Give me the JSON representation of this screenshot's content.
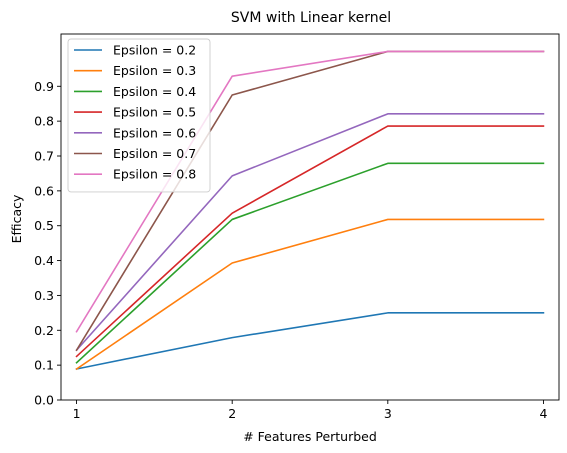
{
  "chart_data": {
    "type": "line",
    "title": "SVM with Linear kernel",
    "xlabel": "# Features Perturbed",
    "ylabel": "Efficacy",
    "x": [
      1,
      2,
      3,
      4
    ],
    "xlim": [
      0.9,
      4.1
    ],
    "ylim": [
      0.0,
      1.05
    ],
    "xticks": [
      "1",
      "2",
      "3",
      "4"
    ],
    "yticks": [
      "0.0",
      "0.1",
      "0.2",
      "0.3",
      "0.4",
      "0.5",
      "0.6",
      "0.7",
      "0.8",
      "0.9"
    ],
    "grid": false,
    "legend_position": "top-left",
    "series": [
      {
        "name": "Epsilon = 0.2",
        "color": "#1f77b4",
        "values": [
          0.089,
          0.179,
          0.25,
          0.25
        ]
      },
      {
        "name": "Epsilon = 0.3",
        "color": "#ff7f0e",
        "values": [
          0.089,
          0.393,
          0.518,
          0.518
        ]
      },
      {
        "name": "Epsilon = 0.4",
        "color": "#2ca02c",
        "values": [
          0.107,
          0.518,
          0.679,
          0.679
        ]
      },
      {
        "name": "Epsilon = 0.5",
        "color": "#d62728",
        "values": [
          0.125,
          0.536,
          0.786,
          0.786
        ]
      },
      {
        "name": "Epsilon = 0.6",
        "color": "#9467bd",
        "values": [
          0.143,
          0.643,
          0.821,
          0.821
        ]
      },
      {
        "name": "Epsilon = 0.7",
        "color": "#8c564b",
        "values": [
          0.143,
          0.875,
          1.0,
          1.0
        ]
      },
      {
        "name": "Epsilon = 0.8",
        "color": "#e377c2",
        "values": [
          0.196,
          0.929,
          1.0,
          1.0
        ]
      }
    ]
  }
}
